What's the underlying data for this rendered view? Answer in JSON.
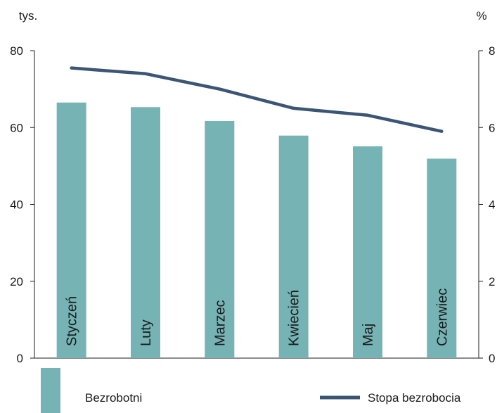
{
  "chart_data": {
    "type": "bar",
    "categories": [
      "Styczeń",
      "Luty",
      "Marzec",
      "Kwiecień",
      "Maj",
      "Czerwiec"
    ],
    "series": [
      {
        "name": "Bezrobotni",
        "type": "bar",
        "axis": "left",
        "values": [
          66.5,
          65.3,
          61.7,
          57.9,
          55.1,
          51.9
        ]
      },
      {
        "name": "Stopa bezrobocia",
        "type": "line",
        "axis": "right",
        "values": [
          7.55,
          7.4,
          7.0,
          6.5,
          6.32,
          5.9
        ]
      }
    ],
    "left_axis": {
      "unit": "tys.",
      "ylim": [
        0,
        80
      ],
      "ticks": [
        "0",
        "20",
        "40",
        "60",
        "80"
      ]
    },
    "right_axis": {
      "unit": "%",
      "ylim": [
        0,
        8
      ],
      "ticks": [
        "0",
        "2",
        "4",
        "6",
        "8"
      ]
    },
    "grid": false,
    "legend": "bottom",
    "colors": {
      "bar": "#76b3b5",
      "line": "#3b5575",
      "axis": "#1a1a1a"
    }
  }
}
